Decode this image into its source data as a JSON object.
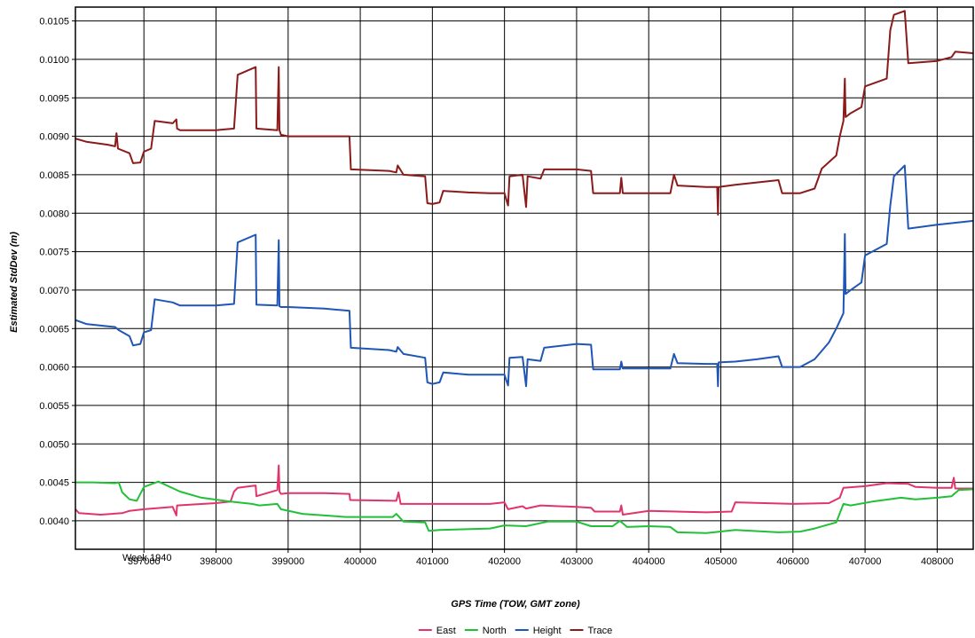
{
  "chart_data": {
    "type": "line",
    "xlabel": "GPS Time (TOW, GMT zone)",
    "ylabel": "Estimated StdDev (m)",
    "x_sublabel": "Week 1940",
    "xlim": [
      396050,
      408500
    ],
    "ylim": [
      0.00363,
      0.01068
    ],
    "x_ticks": [
      397000,
      398000,
      399000,
      400000,
      401000,
      402000,
      403000,
      404000,
      405000,
      406000,
      407000,
      408000
    ],
    "x_tick_labels": [
      "397000",
      "398000",
      "399000",
      "400000",
      "401000",
      "402000",
      "403000",
      "404000",
      "405000",
      "406000",
      "407000",
      "408000"
    ],
    "y_ticks": [
      0.004,
      0.0045,
      0.005,
      0.0055,
      0.006,
      0.0065,
      0.007,
      0.0075,
      0.008,
      0.0085,
      0.009,
      0.0095,
      0.01,
      0.0105
    ],
    "y_tick_labels": [
      "0.0040",
      "0.0045",
      "0.0050",
      "0.0055",
      "0.0060",
      "0.0065",
      "0.0070",
      "0.0075",
      "0.0080",
      "0.0085",
      "0.0090",
      "0.0095",
      "0.0100",
      "0.0105"
    ],
    "grid": true,
    "legend_position": "bottom-center",
    "series": [
      {
        "name": "East",
        "color": "#e0356a",
        "points": [
          [
            396050,
            0.00415
          ],
          [
            396100,
            0.0041
          ],
          [
            396400,
            0.00408
          ],
          [
            396700,
            0.0041
          ],
          [
            396800,
            0.00413
          ],
          [
            397000,
            0.00415
          ],
          [
            397400,
            0.00418
          ],
          [
            397450,
            0.00407
          ],
          [
            397460,
            0.0042
          ],
          [
            398000,
            0.00423
          ],
          [
            398200,
            0.00425
          ],
          [
            398250,
            0.00438
          ],
          [
            398300,
            0.00443
          ],
          [
            398550,
            0.00446
          ],
          [
            398560,
            0.00432
          ],
          [
            398850,
            0.0044
          ],
          [
            398870,
            0.00472
          ],
          [
            398880,
            0.00438
          ],
          [
            398900,
            0.00435
          ],
          [
            399000,
            0.00436
          ],
          [
            399500,
            0.00436
          ],
          [
            399850,
            0.00435
          ],
          [
            399860,
            0.00427
          ],
          [
            400500,
            0.00426
          ],
          [
            400530,
            0.00437
          ],
          [
            400560,
            0.00422
          ],
          [
            401000,
            0.00422
          ],
          [
            401800,
            0.00422
          ],
          [
            402000,
            0.00424
          ],
          [
            402050,
            0.00415
          ],
          [
            402250,
            0.00419
          ],
          [
            402300,
            0.00416
          ],
          [
            402500,
            0.0042
          ],
          [
            403000,
            0.00418
          ],
          [
            403200,
            0.00417
          ],
          [
            403250,
            0.00412
          ],
          [
            403600,
            0.00412
          ],
          [
            403620,
            0.0042
          ],
          [
            403640,
            0.00408
          ],
          [
            404000,
            0.00413
          ],
          [
            404800,
            0.00411
          ],
          [
            405150,
            0.00412
          ],
          [
            405200,
            0.00424
          ],
          [
            406000,
            0.00422
          ],
          [
            406500,
            0.00423
          ],
          [
            406650,
            0.0043
          ],
          [
            406700,
            0.00443
          ],
          [
            407000,
            0.00445
          ],
          [
            407300,
            0.00449
          ],
          [
            407600,
            0.00448
          ],
          [
            407700,
            0.00444
          ],
          [
            408000,
            0.00443
          ],
          [
            408200,
            0.00443
          ],
          [
            408230,
            0.00456
          ],
          [
            408250,
            0.00442
          ],
          [
            408500,
            0.00442
          ]
        ]
      },
      {
        "name": "North",
        "color": "#22c039",
        "points": [
          [
            396050,
            0.0045
          ],
          [
            396300,
            0.0045
          ],
          [
            396600,
            0.00449
          ],
          [
            396650,
            0.0045
          ],
          [
            396700,
            0.00437
          ],
          [
            396800,
            0.00428
          ],
          [
            396900,
            0.00426
          ],
          [
            397000,
            0.00444
          ],
          [
            397200,
            0.00451
          ],
          [
            397500,
            0.00438
          ],
          [
            397800,
            0.0043
          ],
          [
            398200,
            0.00425
          ],
          [
            398500,
            0.00422
          ],
          [
            398600,
            0.0042
          ],
          [
            398850,
            0.00422
          ],
          [
            398900,
            0.00415
          ],
          [
            399200,
            0.00409
          ],
          [
            399800,
            0.00405
          ],
          [
            400000,
            0.00405
          ],
          [
            400450,
            0.00405
          ],
          [
            400500,
            0.00409
          ],
          [
            400600,
            0.00399
          ],
          [
            400900,
            0.00398
          ],
          [
            400950,
            0.00387
          ],
          [
            401100,
            0.00388
          ],
          [
            401800,
            0.0039
          ],
          [
            402000,
            0.00394
          ],
          [
            402300,
            0.00393
          ],
          [
            402600,
            0.00399
          ],
          [
            403000,
            0.00399
          ],
          [
            403200,
            0.00393
          ],
          [
            403500,
            0.00393
          ],
          [
            403600,
            0.004
          ],
          [
            403700,
            0.00392
          ],
          [
            404000,
            0.00393
          ],
          [
            404300,
            0.00392
          ],
          [
            404400,
            0.00385
          ],
          [
            404800,
            0.00384
          ],
          [
            405200,
            0.00388
          ],
          [
            405800,
            0.00385
          ],
          [
            406100,
            0.00386
          ],
          [
            406300,
            0.0039
          ],
          [
            406600,
            0.00398
          ],
          [
            406700,
            0.00422
          ],
          [
            406800,
            0.0042
          ],
          [
            407100,
            0.00425
          ],
          [
            407500,
            0.0043
          ],
          [
            407700,
            0.00428
          ],
          [
            408000,
            0.0043
          ],
          [
            408200,
            0.00432
          ],
          [
            408300,
            0.0044
          ],
          [
            408500,
            0.00441
          ]
        ]
      },
      {
        "name": "Height",
        "color": "#1f56b5",
        "points": [
          [
            396050,
            0.00661
          ],
          [
            396200,
            0.00656
          ],
          [
            396500,
            0.00653
          ],
          [
            396600,
            0.00652
          ],
          [
            396650,
            0.00648
          ],
          [
            396800,
            0.0064
          ],
          [
            396850,
            0.00628
          ],
          [
            396950,
            0.0063
          ],
          [
            397000,
            0.00645
          ],
          [
            397100,
            0.00648
          ],
          [
            397150,
            0.00688
          ],
          [
            397400,
            0.00684
          ],
          [
            397500,
            0.0068
          ],
          [
            398000,
            0.0068
          ],
          [
            398250,
            0.00682
          ],
          [
            398300,
            0.00762
          ],
          [
            398550,
            0.00772
          ],
          [
            398560,
            0.00681
          ],
          [
            398850,
            0.0068
          ],
          [
            398870,
            0.00765
          ],
          [
            398880,
            0.00679
          ],
          [
            398900,
            0.00678
          ],
          [
            399000,
            0.00678
          ],
          [
            399500,
            0.00676
          ],
          [
            399850,
            0.00673
          ],
          [
            399870,
            0.00625
          ],
          [
            400400,
            0.00622
          ],
          [
            400500,
            0.0062
          ],
          [
            400520,
            0.00626
          ],
          [
            400600,
            0.00617
          ],
          [
            400900,
            0.00612
          ],
          [
            400930,
            0.0058
          ],
          [
            401000,
            0.00578
          ],
          [
            401100,
            0.0058
          ],
          [
            401150,
            0.00593
          ],
          [
            401500,
            0.0059
          ],
          [
            401800,
            0.0059
          ],
          [
            402000,
            0.0059
          ],
          [
            402050,
            0.00576
          ],
          [
            402070,
            0.00612
          ],
          [
            402250,
            0.00613
          ],
          [
            402300,
            0.00575
          ],
          [
            402320,
            0.0061
          ],
          [
            402500,
            0.00608
          ],
          [
            402550,
            0.00625
          ],
          [
            403000,
            0.0063
          ],
          [
            403200,
            0.00629
          ],
          [
            403230,
            0.00597
          ],
          [
            403600,
            0.00597
          ],
          [
            403620,
            0.00607
          ],
          [
            403640,
            0.00598
          ],
          [
            404300,
            0.00598
          ],
          [
            404350,
            0.00617
          ],
          [
            404400,
            0.00605
          ],
          [
            404800,
            0.00604
          ],
          [
            404950,
            0.00604
          ],
          [
            404960,
            0.00575
          ],
          [
            404970,
            0.00606
          ],
          [
            405200,
            0.00607
          ],
          [
            405500,
            0.0061
          ],
          [
            405800,
            0.00614
          ],
          [
            405850,
            0.006
          ],
          [
            406100,
            0.006
          ],
          [
            406300,
            0.0061
          ],
          [
            406500,
            0.00632
          ],
          [
            406600,
            0.0065
          ],
          [
            406700,
            0.0067
          ],
          [
            406720,
            0.00773
          ],
          [
            406730,
            0.00695
          ],
          [
            406800,
            0.007
          ],
          [
            406950,
            0.0071
          ],
          [
            407000,
            0.00745
          ],
          [
            407300,
            0.0076
          ],
          [
            407350,
            0.0081
          ],
          [
            407400,
            0.00848
          ],
          [
            407550,
            0.00862
          ],
          [
            407600,
            0.0078
          ],
          [
            408000,
            0.00785
          ],
          [
            408500,
            0.0079
          ]
        ]
      },
      {
        "name": "Trace",
        "color": "#8b1a1a",
        "points": [
          [
            396050,
            0.00897
          ],
          [
            396200,
            0.00893
          ],
          [
            396500,
            0.00889
          ],
          [
            396600,
            0.00887
          ],
          [
            396620,
            0.00904
          ],
          [
            396640,
            0.00884
          ],
          [
            396800,
            0.00878
          ],
          [
            396850,
            0.00865
          ],
          [
            396950,
            0.00866
          ],
          [
            397000,
            0.0088
          ],
          [
            397100,
            0.00884
          ],
          [
            397150,
            0.0092
          ],
          [
            397400,
            0.00917
          ],
          [
            397450,
            0.00922
          ],
          [
            397460,
            0.0091
          ],
          [
            397500,
            0.00908
          ],
          [
            398000,
            0.00908
          ],
          [
            398250,
            0.0091
          ],
          [
            398300,
            0.0098
          ],
          [
            398550,
            0.0099
          ],
          [
            398560,
            0.0091
          ],
          [
            398850,
            0.00908
          ],
          [
            398870,
            0.0099
          ],
          [
            398880,
            0.00908
          ],
          [
            398900,
            0.00902
          ],
          [
            399000,
            0.009
          ],
          [
            399500,
            0.009
          ],
          [
            399850,
            0.009
          ],
          [
            399870,
            0.00857
          ],
          [
            400400,
            0.00855
          ],
          [
            400500,
            0.00853
          ],
          [
            400520,
            0.00862
          ],
          [
            400600,
            0.0085
          ],
          [
            400900,
            0.00848
          ],
          [
            400930,
            0.00813
          ],
          [
            401000,
            0.00812
          ],
          [
            401100,
            0.00814
          ],
          [
            401150,
            0.00829
          ],
          [
            401500,
            0.00827
          ],
          [
            401800,
            0.00826
          ],
          [
            402000,
            0.00826
          ],
          [
            402050,
            0.0081
          ],
          [
            402070,
            0.00848
          ],
          [
            402250,
            0.0085
          ],
          [
            402300,
            0.00808
          ],
          [
            402320,
            0.00848
          ],
          [
            402500,
            0.00845
          ],
          [
            402550,
            0.00857
          ],
          [
            403000,
            0.00857
          ],
          [
            403200,
            0.00855
          ],
          [
            403230,
            0.00826
          ],
          [
            403600,
            0.00826
          ],
          [
            403620,
            0.00846
          ],
          [
            403640,
            0.00826
          ],
          [
            404300,
            0.00826
          ],
          [
            404350,
            0.0085
          ],
          [
            404400,
            0.00836
          ],
          [
            404800,
            0.00834
          ],
          [
            404950,
            0.00834
          ],
          [
            404960,
            0.00798
          ],
          [
            404970,
            0.00834
          ],
          [
            405200,
            0.00837
          ],
          [
            405500,
            0.0084
          ],
          [
            405800,
            0.00843
          ],
          [
            405850,
            0.00826
          ],
          [
            406100,
            0.00826
          ],
          [
            406300,
            0.00832
          ],
          [
            406400,
            0.00858
          ],
          [
            406600,
            0.00875
          ],
          [
            406650,
            0.009
          ],
          [
            406700,
            0.0092
          ],
          [
            406720,
            0.00975
          ],
          [
            406730,
            0.00925
          ],
          [
            406800,
            0.0093
          ],
          [
            406950,
            0.00938
          ],
          [
            407000,
            0.00965
          ],
          [
            407300,
            0.00975
          ],
          [
            407350,
            0.01038
          ],
          [
            407400,
            0.01058
          ],
          [
            407550,
            0.01063
          ],
          [
            407600,
            0.00995
          ],
          [
            408000,
            0.00998
          ],
          [
            408200,
            0.01003
          ],
          [
            408250,
            0.0101
          ],
          [
            408500,
            0.01008
          ]
        ]
      }
    ]
  }
}
